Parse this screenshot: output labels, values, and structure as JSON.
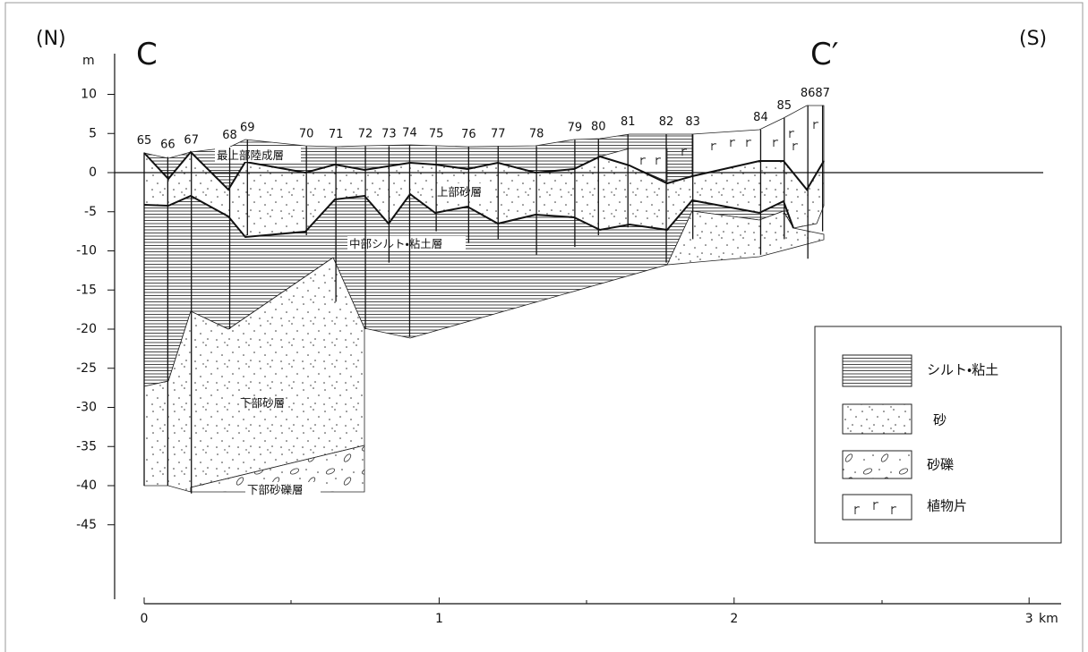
{
  "header": {
    "north": "(N)",
    "south": "(S)",
    "start": "C",
    "end": "C′"
  },
  "axes": {
    "y_unit": "m",
    "y_ticks": [
      10,
      5,
      0,
      -5,
      -10,
      -15,
      -20,
      -25,
      -30,
      -35,
      -40,
      -45
    ],
    "x_unit": "km",
    "x_ticks": [
      0,
      1,
      2,
      3
    ]
  },
  "boreholes": [
    {
      "label": "65",
      "x": 0,
      "top": 2.5,
      "bottom": -40
    },
    {
      "label": "66",
      "x": 0.08,
      "top": 2,
      "bottom": -40
    },
    {
      "label": "67",
      "x": 0.16,
      "top": 2.6,
      "bottom": -41
    },
    {
      "label": "68",
      "x": 0.29,
      "top": 3.2,
      "bottom": -20
    },
    {
      "label": "69",
      "x": 0.35,
      "top": 4.2,
      "bottom": -8
    },
    {
      "label": "70",
      "x": 0.55,
      "top": 3.4,
      "bottom": -8
    },
    {
      "label": "71",
      "x": 0.65,
      "top": 3.3,
      "bottom": -16.5
    },
    {
      "label": "72",
      "x": 0.75,
      "top": 3.4,
      "bottom": -20
    },
    {
      "label": "73",
      "x": 0.83,
      "top": 3.4,
      "bottom": -11.5
    },
    {
      "label": "74",
      "x": 0.9,
      "top": 3.5,
      "bottom": -21
    },
    {
      "label": "75",
      "x": 0.99,
      "top": 3.4,
      "bottom": -7.5
    },
    {
      "label": "76",
      "x": 1.1,
      "top": 3.3,
      "bottom": -9
    },
    {
      "label": "77",
      "x": 1.2,
      "top": 3.4,
      "bottom": -8.5
    },
    {
      "label": "78",
      "x": 1.33,
      "top": 3.4,
      "bottom": -10.5
    },
    {
      "label": "79",
      "x": 1.46,
      "top": 4.2,
      "bottom": -9.5
    },
    {
      "label": "80",
      "x": 1.54,
      "top": 4.3,
      "bottom": -8
    },
    {
      "label": "81",
      "x": 1.64,
      "top": 4.9,
      "bottom": -7
    },
    {
      "label": "82",
      "x": 1.77,
      "top": 4.9,
      "bottom": -11.5
    },
    {
      "label": "83",
      "x": 1.86,
      "top": 4.9,
      "bottom": -8.5
    },
    {
      "label": "84",
      "x": 2.09,
      "top": 5.5,
      "bottom": -10.5
    },
    {
      "label": "85",
      "x": 2.17,
      "top": 7,
      "bottom": -8.5
    },
    {
      "label": "86",
      "x": 2.25,
      "top": 8.6,
      "bottom": -11
    },
    {
      "label": "87",
      "x": 2.3,
      "top": 8.6,
      "bottom": -7.5
    }
  ],
  "layers": [
    "最上部陸成層",
    "上部砂層",
    "中部シルト・粘土層",
    "下部砂層",
    "下部砂礫層"
  ],
  "legend": [
    "シルト・粘土",
    "砂",
    "砂礫",
    "植物片"
  ]
}
